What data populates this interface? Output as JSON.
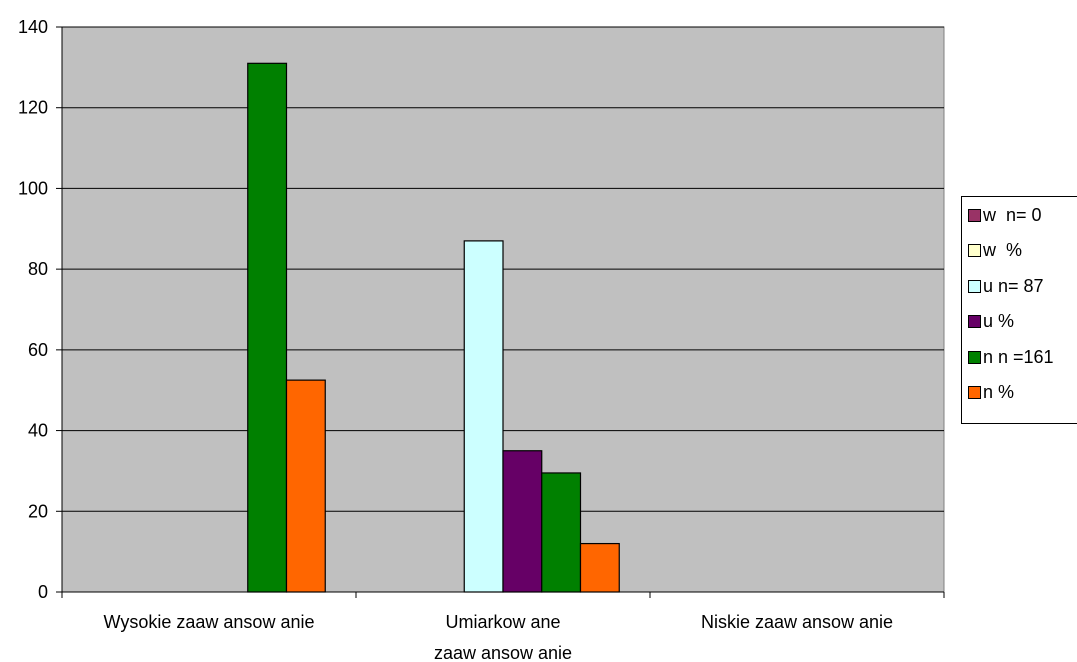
{
  "chart_data": {
    "type": "bar",
    "categories": [
      "Wysokie zaaw ansow anie",
      "Umiarkow ane\nzaaw ansow anie",
      "Niskie zaaw ansow anie"
    ],
    "series": [
      {
        "name": "w  n= 0",
        "color": "#993366",
        "values": [
          0,
          0,
          0
        ]
      },
      {
        "name": "w  %",
        "color": "#FFFFCC",
        "values": [
          0,
          0,
          0
        ]
      },
      {
        "name": "u n= 87",
        "color": "#CCFFFF",
        "values": [
          0,
          87,
          0
        ]
      },
      {
        "name": "u %",
        "color": "#660066",
        "values": [
          0,
          35,
          0
        ]
      },
      {
        "name": "n n =161",
        "color": "#008000",
        "values": [
          131,
          29.5,
          0
        ]
      },
      {
        "name": "n %",
        "color": "#FF6600",
        "values": [
          52.5,
          12,
          0
        ]
      }
    ],
    "ylim": [
      0,
      140
    ],
    "yticks": [
      "0",
      "20",
      "40",
      "60",
      "80",
      "100",
      "120",
      "140"
    ],
    "grid": true,
    "plot_background": "#C0C0C0",
    "legend_position": "right"
  }
}
